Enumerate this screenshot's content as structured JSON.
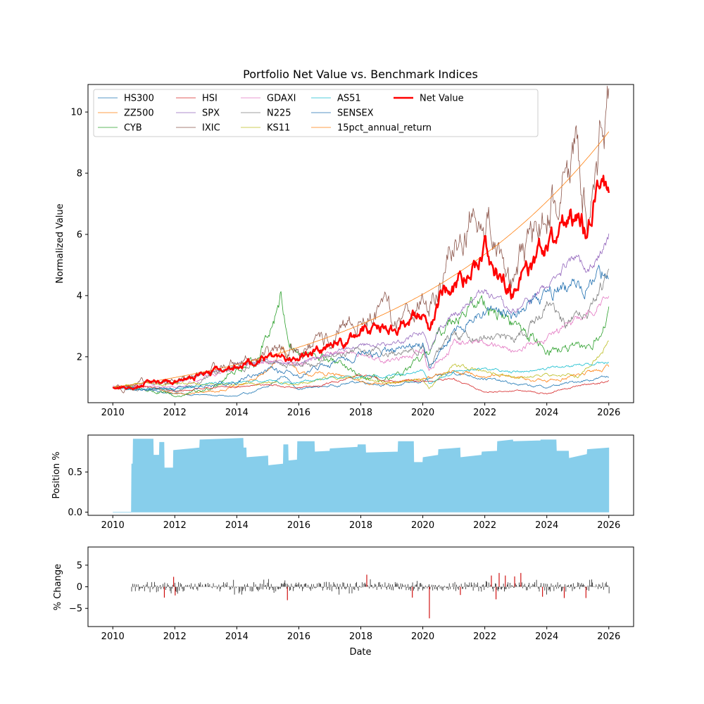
{
  "chart_data": [
    {
      "type": "line",
      "title": "Portfolio Net Value vs. Benchmark Indices",
      "xlabel": "",
      "ylabel": "Normalized Value",
      "xlim": [
        2009.2,
        2026.8
      ],
      "ylim": [
        0.5,
        10.9
      ],
      "xticks": [
        2010,
        2012,
        2014,
        2016,
        2018,
        2020,
        2022,
        2024,
        2026
      ],
      "xtick_labels": [
        "2010",
        "2012",
        "2014",
        "2016",
        "2018",
        "2020",
        "2022",
        "2024",
        "2026"
      ],
      "yticks": [
        2,
        4,
        6,
        8,
        10
      ],
      "ytick_labels": [
        "2",
        "4",
        "6",
        "8",
        "10"
      ],
      "legend_position": "top-left",
      "legend_columns": 5,
      "series": [
        {
          "name": "HS300",
          "color": "#1f77b4",
          "width": 0.8,
          "noise": 0.025,
          "x": [
            2010,
            2011,
            2012,
            2013,
            2014,
            2015,
            2015.5,
            2016,
            2017,
            2018,
            2019,
            2020,
            2021,
            2022,
            2023,
            2024,
            2025,
            2026
          ],
          "y": [
            1.0,
            0.95,
            0.8,
            0.75,
            0.7,
            1.0,
            1.4,
            0.95,
            1.05,
            1.2,
            1.05,
            1.2,
            1.5,
            1.3,
            1.1,
            1.0,
            1.2,
            1.35
          ]
        },
        {
          "name": "ZZ500",
          "color": "#ff7f0e",
          "width": 0.8,
          "noise": 0.03,
          "x": [
            2010,
            2011,
            2012,
            2013,
            2014,
            2015,
            2015.5,
            2016,
            2017,
            2018,
            2019,
            2020,
            2021,
            2022,
            2023,
            2024,
            2025,
            2026
          ],
          "y": [
            1.0,
            1.05,
            0.8,
            0.85,
            1.0,
            1.5,
            2.3,
            1.4,
            1.45,
            1.2,
            1.1,
            1.3,
            1.5,
            1.4,
            1.3,
            1.2,
            1.4,
            1.65
          ]
        },
        {
          "name": "CYB",
          "color": "#2ca02c",
          "width": 0.8,
          "noise": 0.05,
          "x": [
            2010,
            2011,
            2012,
            2013,
            2014,
            2014.6,
            2015.2,
            2015.4,
            2015.7,
            2016,
            2017,
            2018,
            2019,
            2020,
            2021,
            2022,
            2023,
            2024,
            2025,
            2025.5,
            2026
          ],
          "y": [
            1.0,
            0.95,
            0.7,
            0.9,
            1.6,
            1.8,
            3.3,
            4.1,
            2.5,
            2.1,
            1.9,
            1.3,
            1.2,
            1.9,
            3.4,
            3.8,
            3.0,
            2.3,
            2.2,
            2.4,
            3.3
          ]
        },
        {
          "name": "HSI",
          "color": "#d62728",
          "width": 0.8,
          "noise": 0.02,
          "x": [
            2010,
            2011,
            2012,
            2013,
            2014,
            2015,
            2016,
            2017,
            2018,
            2019,
            2020,
            2021,
            2022,
            2023,
            2024,
            2025,
            2026
          ],
          "y": [
            1.0,
            1.05,
            0.85,
            1.0,
            1.0,
            1.1,
            0.95,
            1.15,
            1.4,
            1.2,
            1.2,
            1.25,
            0.85,
            0.9,
            0.8,
            1.05,
            1.2
          ]
        },
        {
          "name": "SPX",
          "color": "#9467bd",
          "width": 0.8,
          "noise": 0.025,
          "x": [
            2010,
            2011,
            2012,
            2013,
            2014,
            2015,
            2016,
            2017,
            2018,
            2019,
            2020,
            2020.2,
            2020.5,
            2021,
            2022,
            2022.8,
            2023,
            2024,
            2025,
            2025.3,
            2026
          ],
          "y": [
            1.0,
            1.1,
            1.15,
            1.4,
            1.75,
            1.85,
            1.8,
            2.1,
            2.4,
            2.4,
            2.85,
            2.2,
            2.9,
            3.4,
            4.2,
            3.4,
            3.5,
            4.3,
            5.3,
            4.6,
            6.1
          ]
        },
        {
          "name": "IXIC",
          "color": "#8c564b",
          "width": 0.8,
          "noise": 0.07,
          "x": [
            2010,
            2011,
            2012,
            2013,
            2014,
            2015,
            2016,
            2017,
            2018,
            2018.9,
            2019,
            2020,
            2020.2,
            2020.5,
            2021,
            2021.9,
            2022.5,
            2022.9,
            2023,
            2024,
            2025,
            2025.3,
            2025.6,
            2026
          ],
          "y": [
            1.0,
            1.1,
            1.2,
            1.45,
            1.85,
            2.1,
            2.2,
            2.5,
            3.2,
            3.5,
            3.0,
            4.0,
            3.3,
            4.3,
            5.6,
            7.0,
            5.5,
            4.5,
            4.6,
            6.7,
            8.7,
            6.8,
            9.0,
            10.2
          ]
        },
        {
          "name": "GDAXI",
          "color": "#e377c2",
          "width": 0.8,
          "noise": 0.03,
          "x": [
            2010,
            2011,
            2012,
            2013,
            2014,
            2015,
            2016,
            2017,
            2018,
            2019,
            2020,
            2020.2,
            2021,
            2022,
            2023,
            2024,
            2025,
            2026
          ],
          "y": [
            1.0,
            1.05,
            1.0,
            1.35,
            1.6,
            1.9,
            1.75,
            2.1,
            2.05,
            1.9,
            2.2,
            1.5,
            2.4,
            2.5,
            2.2,
            2.7,
            3.2,
            4.0
          ]
        },
        {
          "name": "N225",
          "color": "#7f7f7f",
          "width": 0.8,
          "noise": 0.04,
          "x": [
            2010,
            2011,
            2012,
            2013,
            2014,
            2015,
            2016,
            2017,
            2018,
            2019,
            2020,
            2020.2,
            2021,
            2022,
            2023,
            2024,
            2024.6,
            2025,
            2025.3,
            2026
          ],
          "y": [
            1.0,
            0.95,
            0.85,
            1.3,
            1.6,
            1.9,
            1.7,
            2.0,
            2.2,
            2.1,
            2.3,
            1.8,
            2.7,
            2.7,
            2.6,
            3.6,
            3.0,
            3.7,
            3.3,
            4.8
          ]
        },
        {
          "name": "KS11",
          "color": "#bcbd22",
          "width": 0.8,
          "noise": 0.025,
          "x": [
            2010,
            2011,
            2012,
            2013,
            2014,
            2015,
            2016,
            2017,
            2018,
            2019,
            2020,
            2020.2,
            2021,
            2022,
            2023,
            2024,
            2025,
            2026
          ],
          "y": [
            1.0,
            1.15,
            1.1,
            1.1,
            1.1,
            1.15,
            1.1,
            1.3,
            1.3,
            1.15,
            1.25,
            0.95,
            1.75,
            1.5,
            1.3,
            1.45,
            1.35,
            2.45
          ]
        },
        {
          "name": "AS51",
          "color": "#17becf",
          "width": 0.8,
          "noise": 0.02,
          "x": [
            2010,
            2011,
            2012,
            2013,
            2014,
            2015,
            2016,
            2017,
            2018,
            2019,
            2020,
            2020.2,
            2021,
            2022,
            2023,
            2024,
            2025,
            2026
          ],
          "y": [
            1.0,
            0.95,
            0.95,
            1.1,
            1.15,
            1.2,
            1.15,
            1.3,
            1.35,
            1.4,
            1.55,
            1.1,
            1.5,
            1.6,
            1.5,
            1.6,
            1.7,
            1.8
          ]
        },
        {
          "name": "SENSEX",
          "color": "#1f6fb0",
          "width": 0.8,
          "noise": 0.04,
          "x": [
            2010,
            2011,
            2012,
            2013,
            2014,
            2015,
            2016,
            2017,
            2018,
            2019,
            2020,
            2020.2,
            2021,
            2022,
            2023,
            2024,
            2025,
            2026
          ],
          "y": [
            1.0,
            0.9,
            0.95,
            1.05,
            1.2,
            1.55,
            1.4,
            1.75,
            2.0,
            2.2,
            2.35,
            1.6,
            2.8,
            3.4,
            3.3,
            4.1,
            4.3,
            4.85
          ]
        },
        {
          "name": "15pct_annual_return",
          "color": "#ff7f0e",
          "width": 0.8,
          "noise": 0,
          "growth_rate": 0.15,
          "start_value": 1.0
        },
        {
          "name": "Net Value",
          "color": "#ff0000",
          "width": 2.5,
          "noise": 0.045,
          "x": [
            2010,
            2010.6,
            2011,
            2011.5,
            2012,
            2013,
            2014,
            2015,
            2016,
            2017,
            2018,
            2018.8,
            2019,
            2020,
            2020.2,
            2020.6,
            2021,
            2022,
            2022.5,
            2022.9,
            2023,
            2024,
            2025,
            2025.3,
            2025.6,
            2026
          ],
          "y": [
            1.0,
            1.0,
            1.15,
            1.2,
            1.15,
            1.45,
            1.7,
            1.95,
            2.1,
            2.3,
            2.85,
            3.1,
            2.95,
            3.4,
            2.9,
            4.0,
            4.3,
            5.4,
            4.6,
            4.0,
            4.4,
            5.6,
            6.8,
            5.9,
            7.5,
            7.9
          ]
        }
      ]
    },
    {
      "type": "area",
      "title": "",
      "xlabel": "",
      "ylabel": "Position %",
      "xlim": [
        2009.2,
        2026.8
      ],
      "ylim": [
        -0.04,
        0.96
      ],
      "xticks": [
        2010,
        2012,
        2014,
        2016,
        2018,
        2020,
        2022,
        2024,
        2026
      ],
      "xtick_labels": [
        "2010",
        "2012",
        "2014",
        "2016",
        "2018",
        "2020",
        "2022",
        "2024",
        "2026"
      ],
      "yticks": [
        0.0,
        0.5
      ],
      "ytick_labels": [
        "0.0",
        "0.5"
      ],
      "color": "#87ceeb",
      "x": [
        2010.0,
        2010.6,
        2010.61,
        2010.65,
        2010.66,
        2011.3,
        2011.31,
        2011.5,
        2011.51,
        2011.65,
        2011.66,
        2011.95,
        2011.96,
        2012.8,
        2012.81,
        2014.2,
        2014.21,
        2014.3,
        2014.31,
        2015.0,
        2015.01,
        2015.5,
        2015.51,
        2015.65,
        2015.66,
        2015.95,
        2015.96,
        2016.5,
        2016.51,
        2017.0,
        2017.01,
        2017.9,
        2017.91,
        2018.15,
        2018.16,
        2019.2,
        2019.21,
        2019.7,
        2019.71,
        2020.0,
        2020.01,
        2020.5,
        2020.51,
        2021.2,
        2021.21,
        2021.9,
        2021.91,
        2022.4,
        2022.41,
        2022.9,
        2022.91,
        2023.8,
        2023.81,
        2024.3,
        2024.31,
        2024.7,
        2024.71,
        2025.3,
        2025.31,
        2026.0
      ],
      "y": [
        0.0,
        0.0,
        0.6,
        0.6,
        0.91,
        0.91,
        0.71,
        0.71,
        0.87,
        0.87,
        0.55,
        0.55,
        0.77,
        0.8,
        0.9,
        0.92,
        0.8,
        0.8,
        0.68,
        0.7,
        0.58,
        0.6,
        0.84,
        0.84,
        0.64,
        0.65,
        0.88,
        0.88,
        0.75,
        0.76,
        0.79,
        0.81,
        0.84,
        0.84,
        0.74,
        0.75,
        0.88,
        0.88,
        0.62,
        0.62,
        0.68,
        0.71,
        0.78,
        0.8,
        0.68,
        0.71,
        0.75,
        0.76,
        0.88,
        0.9,
        0.88,
        0.89,
        0.9,
        0.9,
        0.76,
        0.76,
        0.67,
        0.72,
        0.78,
        0.8
      ]
    },
    {
      "type": "bar",
      "title": "",
      "xlabel": "Date",
      "ylabel": "% Change",
      "xlim": [
        2009.2,
        2026.8
      ],
      "ylim": [
        -9.2,
        9.2
      ],
      "xticks": [
        2010,
        2012,
        2014,
        2016,
        2018,
        2020,
        2022,
        2024,
        2026
      ],
      "xtick_labels": [
        "2010",
        "2012",
        "2014",
        "2016",
        "2018",
        "2020",
        "2022",
        "2024",
        "2026"
      ],
      "yticks": [
        5,
        0,
        -5
      ],
      "ytick_labels": [
        "5",
        "0",
        "−5"
      ],
      "positive_color": "#000000",
      "negative_color": "#000000",
      "highlight_color": "#cc0000",
      "start": 2010.6,
      "end": 2026.0,
      "highlights": [
        {
          "x": 2011.65,
          "value": -2.5
        },
        {
          "x": 2011.95,
          "value": 2.3
        },
        {
          "x": 2012.0,
          "value": -2.0
        },
        {
          "x": 2015.62,
          "value": -3.1
        },
        {
          "x": 2018.18,
          "value": 2.8
        },
        {
          "x": 2019.65,
          "value": -2.5
        },
        {
          "x": 2020.2,
          "value": -7.3
        },
        {
          "x": 2021.2,
          "value": -1.9
        },
        {
          "x": 2022.2,
          "value": 2.6
        },
        {
          "x": 2022.35,
          "value": -2.9
        },
        {
          "x": 2022.45,
          "value": 3.2
        },
        {
          "x": 2022.65,
          "value": 2.6
        },
        {
          "x": 2022.95,
          "value": 2.4
        },
        {
          "x": 2023.15,
          "value": 3.2
        },
        {
          "x": 2023.85,
          "value": -2.3
        },
        {
          "x": 2024.55,
          "value": -2.6
        },
        {
          "x": 2025.25,
          "value": -2.6
        }
      ]
    }
  ]
}
